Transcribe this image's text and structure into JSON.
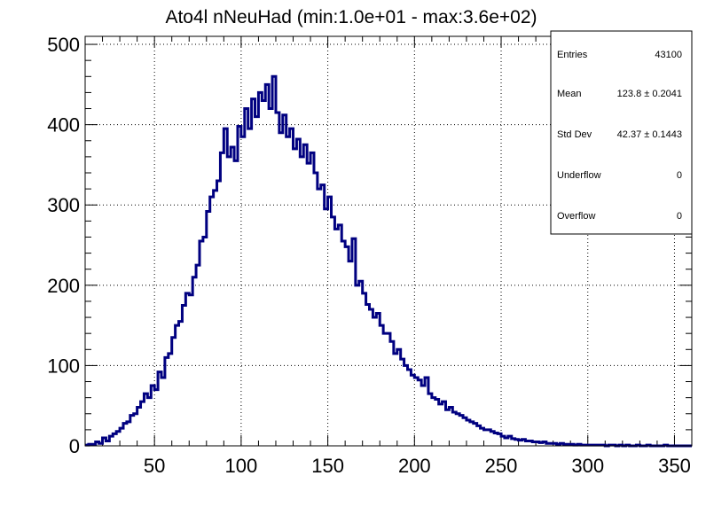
{
  "chart_data": {
    "type": "histogram",
    "title": "Ato4l nNeuHad (min:1.0e+01 - max:3.6e+02)",
    "xlabel": "",
    "ylabel": "",
    "xlim": [
      10,
      360
    ],
    "ylim": [
      0,
      510
    ],
    "x_ticks": [
      50,
      100,
      150,
      200,
      250,
      300,
      350
    ],
    "y_ticks": [
      0,
      100,
      200,
      300,
      400,
      500
    ],
    "grid": true,
    "line_color": "#000080",
    "bin_width": 2,
    "x": [
      11,
      13,
      15,
      17,
      19,
      21,
      23,
      25,
      27,
      29,
      31,
      33,
      35,
      37,
      39,
      41,
      43,
      45,
      47,
      49,
      51,
      53,
      55,
      57,
      59,
      61,
      63,
      65,
      67,
      69,
      71,
      73,
      75,
      77,
      79,
      81,
      83,
      85,
      87,
      89,
      91,
      93,
      95,
      97,
      99,
      101,
      103,
      105,
      107,
      109,
      111,
      113,
      115,
      117,
      119,
      121,
      123,
      125,
      127,
      129,
      131,
      133,
      135,
      137,
      139,
      141,
      143,
      145,
      147,
      149,
      151,
      153,
      155,
      157,
      159,
      161,
      163,
      165,
      167,
      169,
      171,
      173,
      175,
      177,
      179,
      181,
      183,
      185,
      187,
      189,
      191,
      193,
      195,
      197,
      199,
      201,
      203,
      205,
      207,
      209,
      211,
      213,
      215,
      217,
      219,
      221,
      223,
      225,
      227,
      229,
      231,
      233,
      235,
      237,
      239,
      241,
      243,
      245,
      247,
      249,
      251,
      253,
      255,
      257,
      259,
      261,
      263,
      265,
      267,
      269,
      271,
      273,
      275,
      277,
      279,
      281,
      283,
      285,
      287,
      289,
      291,
      293,
      295,
      297,
      299,
      301,
      303,
      305,
      307,
      309,
      311,
      313,
      315,
      317,
      319,
      321,
      323,
      325,
      327,
      329,
      331,
      333,
      335,
      337,
      339,
      341,
      343,
      345,
      347,
      349,
      351,
      353,
      355,
      357,
      359
    ],
    "values": [
      1,
      2,
      2,
      5,
      3,
      10,
      6,
      12,
      15,
      18,
      22,
      28,
      30,
      38,
      40,
      48,
      55,
      65,
      60,
      75,
      70,
      92,
      85,
      110,
      115,
      135,
      150,
      155,
      175,
      190,
      188,
      210,
      225,
      255,
      260,
      292,
      310,
      318,
      330,
      365,
      395,
      360,
      372,
      355,
      398,
      385,
      420,
      395,
      432,
      410,
      440,
      430,
      450,
      420,
      460,
      415,
      390,
      412,
      385,
      395,
      370,
      382,
      360,
      375,
      352,
      365,
      340,
      320,
      325,
      295,
      310,
      285,
      270,
      275,
      255,
      248,
      230,
      258,
      200,
      205,
      190,
      176,
      170,
      160,
      165,
      150,
      140,
      140,
      130,
      115,
      120,
      108,
      100,
      95,
      88,
      85,
      82,
      75,
      85,
      65,
      60,
      58,
      52,
      55,
      45,
      48,
      42,
      40,
      38,
      35,
      32,
      30,
      28,
      25,
      22,
      20,
      20,
      18,
      16,
      15,
      12,
      10,
      12,
      9,
      8,
      7,
      8,
      6,
      6,
      5,
      5,
      4,
      5,
      3,
      3,
      3,
      2,
      3,
      2,
      2,
      2,
      1,
      2,
      1,
      1,
      1,
      1,
      1,
      1,
      1,
      0,
      1,
      1,
      0,
      1,
      0,
      1,
      0,
      0,
      1,
      0,
      0,
      1,
      0,
      0,
      0,
      0,
      1,
      0,
      0,
      0,
      0,
      0,
      0,
      0
    ]
  },
  "stats_box": {
    "rows": [
      {
        "label": "Entries",
        "value": "43100"
      },
      {
        "label": "Mean",
        "value": "123.8  ± 0.2041"
      },
      {
        "label": "Std Dev",
        "value": "42.37  ± 0.1443"
      },
      {
        "label": "Underflow",
        "value": "0"
      },
      {
        "label": "Overflow",
        "value": "0"
      }
    ]
  }
}
